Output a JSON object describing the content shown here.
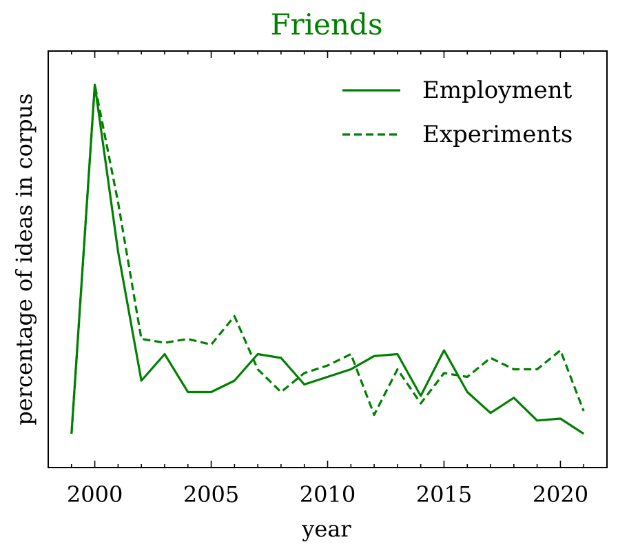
{
  "chart_data": {
    "type": "line",
    "title": "Friends",
    "xlabel": "year",
    "ylabel": "percentage of ideas in corpus",
    "xlim": [
      1998,
      2022
    ],
    "ylim": [
      0,
      1
    ],
    "x_ticks": [
      2000,
      2005,
      2010,
      2015,
      2020
    ],
    "x_tick_labels": [
      "2000",
      "2005",
      "2010",
      "2015",
      "2020"
    ],
    "y_tick_labels_shown": false,
    "grid": false,
    "legend_position": "top-right",
    "x": [
      1999,
      2000,
      2001,
      2002,
      2003,
      2004,
      2005,
      2006,
      2007,
      2008,
      2009,
      2010,
      2011,
      2012,
      2013,
      2014,
      2015,
      2016,
      2017,
      2018,
      2019,
      2020,
      2021
    ],
    "series": [
      {
        "name": "Employment",
        "style": "solid",
        "color": "#008000",
        "values": [
          0.04,
          0.96,
          0.52,
          0.18,
          0.25,
          0.15,
          0.15,
          0.18,
          0.25,
          0.24,
          0.17,
          0.19,
          0.21,
          0.245,
          0.25,
          0.14,
          0.26,
          0.15,
          0.095,
          0.135,
          0.075,
          0.08,
          0.04
        ]
      },
      {
        "name": "Experiments",
        "style": "dashed",
        "color": "#008000",
        "values": [
          0.04,
          0.96,
          0.65,
          0.29,
          0.28,
          0.29,
          0.275,
          0.35,
          0.21,
          0.15,
          0.2,
          0.22,
          0.25,
          0.09,
          0.21,
          0.12,
          0.2,
          0.19,
          0.24,
          0.21,
          0.21,
          0.26,
          0.1
        ]
      }
    ],
    "title_color": "#008000"
  }
}
